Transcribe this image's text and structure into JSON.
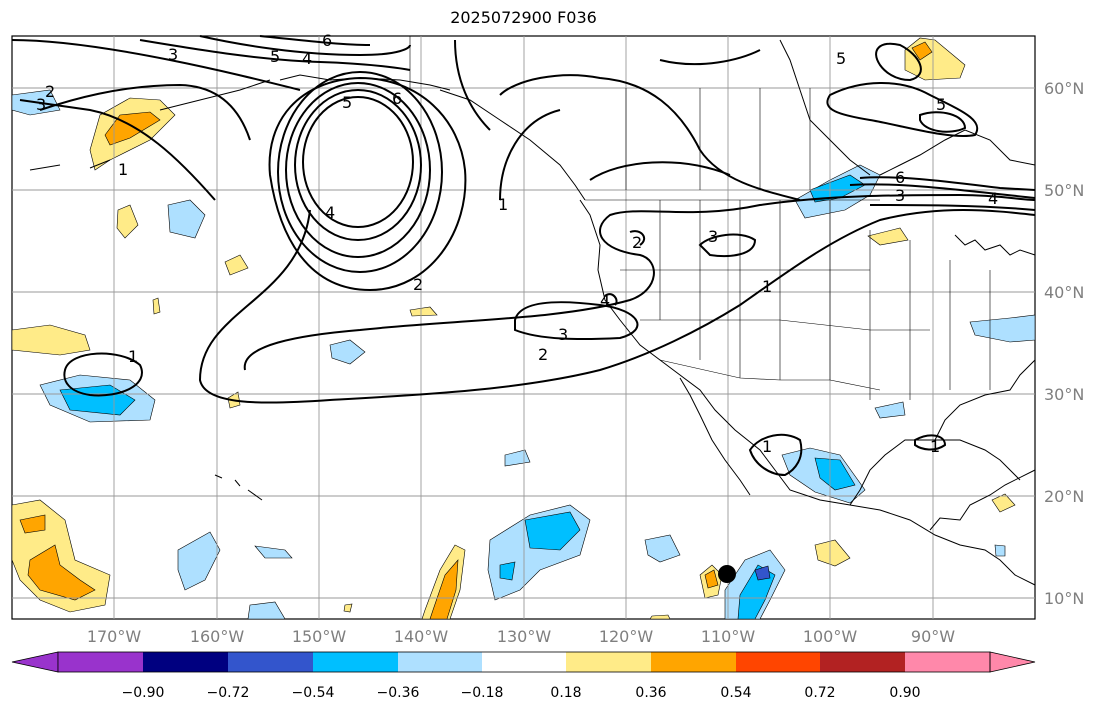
{
  "title": "2025072900 F036",
  "lat_labels": [
    "60°N",
    "50°N",
    "40°N",
    "30°N",
    "20°N",
    "10°N"
  ],
  "lon_labels": [
    "170°W",
    "160°W",
    "150°W",
    "140°W",
    "130°W",
    "120°W",
    "110°W",
    "100°W",
    "90°W"
  ],
  "colorbar": {
    "ticks": [
      "−0.90",
      "−0.72",
      "−0.54",
      "−0.36",
      "−0.18",
      "0.18",
      "0.36",
      "0.54",
      "0.72",
      "0.90"
    ],
    "colors": [
      "#9933cc",
      "#000080",
      "#3355cc",
      "#00bfff",
      "#aee0ff",
      "#ffffff",
      "#ffeb88",
      "#ffa500",
      "#ff4500",
      "#b22222",
      "#ff88aa"
    ]
  },
  "contour_labels": [
    "6",
    "5",
    "4",
    "3",
    "2",
    "6",
    "5",
    "4",
    "2",
    "3",
    "1",
    "2",
    "1",
    "3",
    "1",
    "2",
    "3",
    "4",
    "1",
    "6",
    "5",
    "3",
    "4",
    "5",
    "1",
    "1"
  ]
}
